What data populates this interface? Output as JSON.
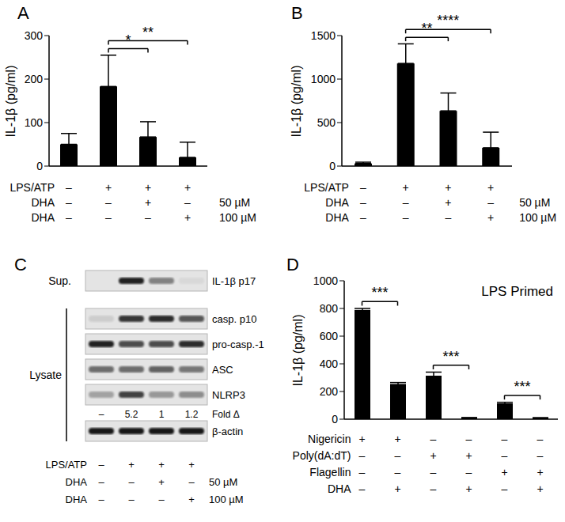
{
  "chart_data": [
    {
      "type": "bar",
      "panel": "A",
      "y_label": "IL-1β (pg/ml)",
      "color": "#000000",
      "values": [
        50,
        183,
        67,
        20
      ],
      "errors": [
        25,
        72,
        35,
        35
      ],
      "ylim": [
        0,
        300
      ],
      "yticks": [
        0,
        100,
        200,
        300
      ],
      "conditions": [
        {
          "label": "LPS/ATP",
          "values": [
            "–",
            "+",
            "+",
            "+"
          ]
        },
        {
          "label": "DHA",
          "values": [
            "–",
            "–",
            "+",
            "–"
          ],
          "dose": "50 µM"
        },
        {
          "label": "DHA",
          "values": [
            "–",
            "–",
            "–",
            "+"
          ],
          "dose": "100 µM"
        }
      ],
      "significance": [
        {
          "bars": [
            1,
            2
          ],
          "label": "*"
        },
        {
          "bars": [
            1,
            3
          ],
          "label": "**"
        }
      ]
    },
    {
      "type": "bar",
      "panel": "B",
      "y_label": "IL-1β (pg/ml)",
      "color": "#000000",
      "values": [
        30,
        1180,
        635,
        210
      ],
      "errors": [
        15,
        225,
        205,
        180
      ],
      "ylim": [
        0,
        1500
      ],
      "yticks": [
        0,
        500,
        1000,
        1500
      ],
      "conditions": [
        {
          "label": "LPS/ATP",
          "values": [
            "–",
            "+",
            "+",
            "+"
          ]
        },
        {
          "label": "DHA",
          "values": [
            "–",
            "–",
            "+",
            "–"
          ],
          "dose": "50 µM"
        },
        {
          "label": "DHA",
          "values": [
            "–",
            "–",
            "–",
            "+"
          ],
          "dose": "100 µM"
        }
      ],
      "significance": [
        {
          "bars": [
            1,
            2
          ],
          "label": "**"
        },
        {
          "bars": [
            1,
            3
          ],
          "label": "****"
        }
      ]
    },
    {
      "type": "bar",
      "panel": "D",
      "y_label": "IL-1β (pg/ml)",
      "color": "#000000",
      "annotation": "LPS Primed",
      "values": [
        785,
        250,
        310,
        8,
        110,
        8
      ],
      "errors": [
        15,
        15,
        30,
        4,
        12,
        3
      ],
      "ylim": [
        0,
        1000
      ],
      "yticks": [
        0,
        200,
        400,
        600,
        800,
        1000
      ],
      "conditions": [
        {
          "label": "Nigericin",
          "values": [
            "+",
            "+",
            "–",
            "–",
            "–",
            "–"
          ]
        },
        {
          "label": "Poly(dA:dT)",
          "values": [
            "–",
            "–",
            "+",
            "+",
            "–",
            "–"
          ]
        },
        {
          "label": "Flagellin",
          "values": [
            "–",
            "–",
            "–",
            "–",
            "+",
            "+"
          ]
        },
        {
          "label": "DHA",
          "values": [
            "–",
            "+",
            "–",
            "+",
            "–",
            "+"
          ]
        }
      ],
      "significance": [
        {
          "bars": [
            0,
            1
          ],
          "label": "***"
        },
        {
          "bars": [
            2,
            3
          ],
          "label": "***"
        },
        {
          "bars": [
            4,
            5
          ],
          "label": "***"
        }
      ]
    }
  ],
  "blot": {
    "panel": "C",
    "sections": [
      {
        "label": "Sup.",
        "rows": [
          {
            "label": "IL-1β p17",
            "intensity": [
              0,
              0.9,
              0.45,
              0.05
            ]
          }
        ]
      },
      {
        "label": "Lysate",
        "rows": [
          {
            "label": "casp. p10",
            "intensity": [
              0.1,
              0.8,
              0.85,
              0.65
            ]
          },
          {
            "label": "pro-casp.-1",
            "intensity": [
              0.9,
              0.7,
              0.7,
              0.85
            ]
          },
          {
            "label": "ASC",
            "intensity": [
              0.55,
              0.55,
              0.6,
              0.5
            ]
          },
          {
            "label": "NLRP3",
            "intensity": [
              0.3,
              0.75,
              0.35,
              0.4
            ],
            "fold_change": {
              "label": "Fold Δ",
              "values": [
                "–",
                5.2,
                1,
                1.2
              ]
            }
          },
          {
            "label": "β-actin",
            "intensity": [
              0.95,
              0.95,
              0.95,
              0.95
            ]
          }
        ]
      }
    ],
    "conditions": [
      {
        "label": "LPS/ATP",
        "values": [
          "–",
          "+",
          "+",
          "+"
        ]
      },
      {
        "label": "DHA",
        "values": [
          "–",
          "–",
          "+",
          "–"
        ],
        "dose": "50 µM"
      },
      {
        "label": "DHA",
        "values": [
          "–",
          "–",
          "–",
          "+"
        ],
        "dose": "100 µM"
      }
    ]
  }
}
